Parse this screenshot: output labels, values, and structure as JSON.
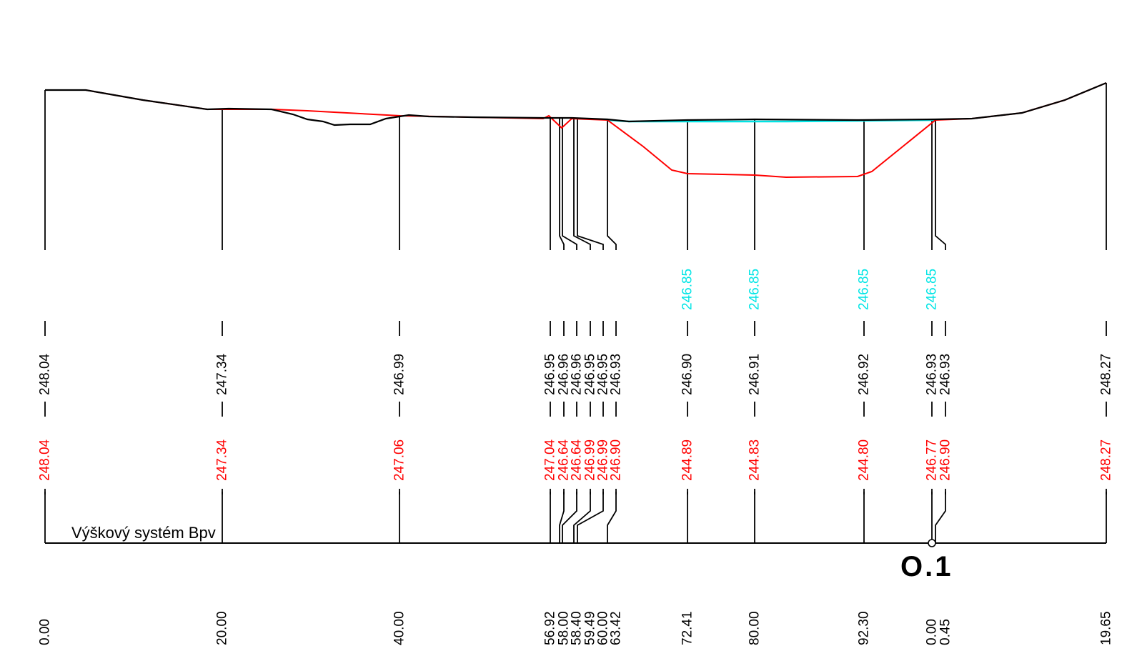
{
  "labels": {
    "system": "Výškový systém Bpv",
    "marker": "O.1"
  },
  "colors": {
    "terrain": "#000000",
    "design": "#ff0000",
    "water": "#00e5e5",
    "text": "#000000"
  },
  "sections": [
    {
      "key": "s0",
      "stationing": "0.00",
      "terrain": "248.04",
      "design": "248.04",
      "water": ""
    },
    {
      "key": "s1",
      "stationing": "20.00",
      "terrain": "247.34",
      "design": "247.34",
      "water": ""
    },
    {
      "key": "s2",
      "stationing": "40.00",
      "terrain": "246.99",
      "design": "247.06",
      "water": ""
    },
    {
      "key": "s3",
      "stationing": "56.92",
      "terrain": "246.95",
      "design": "247.04",
      "water": ""
    },
    {
      "key": "s4",
      "stationing": "58.00",
      "terrain": "246.96",
      "design": "246.64",
      "water": ""
    },
    {
      "key": "s5",
      "stationing": "58.40",
      "terrain": "246.96",
      "design": "246.64",
      "water": ""
    },
    {
      "key": "s6",
      "stationing": "59.49",
      "terrain": "246.95",
      "design": "246.99",
      "water": ""
    },
    {
      "key": "s7",
      "stationing": "60.00",
      "terrain": "246.95",
      "design": "246.99",
      "water": ""
    },
    {
      "key": "s8",
      "stationing": "63.42",
      "terrain": "246.93",
      "design": "246.90",
      "water": ""
    },
    {
      "key": "s9",
      "stationing": "72.41",
      "terrain": "246.90",
      "design": "244.89",
      "water": "246.85"
    },
    {
      "key": "s10",
      "stationing": "80.00",
      "terrain": "246.91",
      "design": "244.83",
      "water": "246.85"
    },
    {
      "key": "s11",
      "stationing": "92.30",
      "terrain": "246.92",
      "design": "244.80",
      "water": "246.85"
    },
    {
      "key": "s12",
      "stationing": "0.00",
      "terrain": "246.93",
      "design": "246.77",
      "water": "246.85"
    },
    {
      "key": "s13",
      "stationing": "0.45",
      "terrain": "246.93",
      "design": "246.90",
      "water": ""
    },
    {
      "key": "s14",
      "stationing": "19.65",
      "terrain": "248.27",
      "design": "248.27",
      "water": ""
    }
  ]
}
